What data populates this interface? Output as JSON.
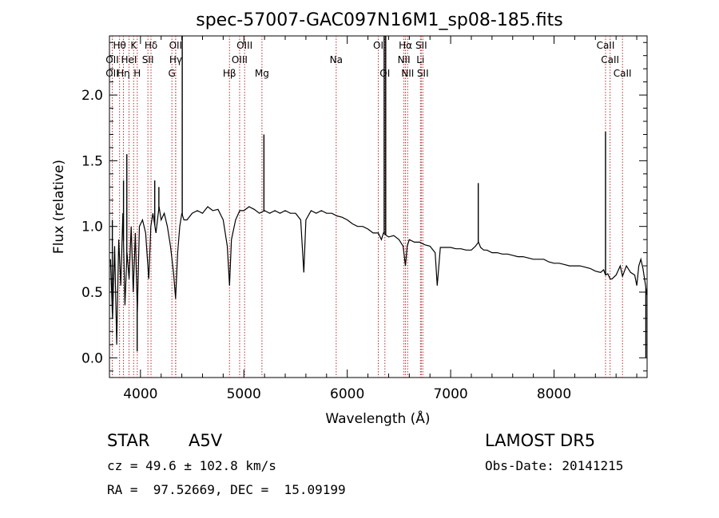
{
  "chart_data": {
    "type": "line",
    "title": "spec-57007-GAC097N16M1_sp08-185.fits",
    "xlabel": "Wavelength (Å)",
    "ylabel": "Flux (relative)",
    "xlim": [
      3700,
      8900
    ],
    "ylim": [
      -0.15,
      2.45
    ],
    "xticks": [
      4000,
      5000,
      6000,
      7000,
      8000
    ],
    "yticks": [
      0.0,
      0.5,
      1.0,
      1.5,
      2.0
    ],
    "ytick_labels": [
      "0.0",
      "0.5",
      "1.0",
      "1.5",
      "2.0"
    ],
    "line_color": "#000000",
    "marker_color": "#b03030",
    "grid": false,
    "series": [
      {
        "x": [
          3710,
          3730,
          3750,
          3770,
          3790,
          3810,
          3830,
          3850,
          3870,
          3890,
          3910,
          3930,
          3950,
          3970,
          3990,
          4020,
          4050,
          4080,
          4100,
          4120,
          4150,
          4180,
          4200,
          4230,
          4260,
          4290,
          4320,
          4340,
          4360,
          4380,
          4400,
          4420,
          4450,
          4500,
          4550,
          4600,
          4650,
          4700,
          4750,
          4800,
          4840,
          4861,
          4880,
          4920,
          4960,
          5000,
          5050,
          5100,
          5150,
          5200,
          5250,
          5300,
          5350,
          5400,
          5450,
          5500,
          5550,
          5580,
          5600,
          5650,
          5700,
          5750,
          5800,
          5850,
          5900,
          5950,
          6000,
          6050,
          6100,
          6150,
          6200,
          6250,
          6300,
          6330,
          6350,
          6380,
          6400,
          6450,
          6500,
          6540,
          6563,
          6580,
          6600,
          6650,
          6700,
          6750,
          6800,
          6850,
          6870,
          6900,
          6950,
          7000,
          7050,
          7100,
          7150,
          7200,
          7240,
          7270,
          7290,
          7320,
          7350,
          7400,
          7450,
          7500,
          7550,
          7600,
          7650,
          7700,
          7750,
          7800,
          7850,
          7900,
          7950,
          8000,
          8050,
          8100,
          8150,
          8200,
          8250,
          8300,
          8350,
          8400,
          8450,
          8480,
          8498,
          8520,
          8542,
          8560,
          8600,
          8640,
          8662,
          8700,
          8740,
          8780,
          8800,
          8820,
          8840,
          8860,
          8875,
          8885,
          8895
        ],
        "y": [
          0.75,
          0.3,
          0.85,
          0.1,
          0.9,
          0.55,
          1.1,
          0.4,
          0.8,
          0.6,
          1.0,
          0.5,
          0.95,
          0.35,
          1.0,
          1.05,
          0.95,
          0.6,
          1.0,
          1.1,
          0.95,
          1.15,
          1.05,
          1.1,
          1.0,
          0.85,
          0.65,
          0.45,
          0.8,
          1.0,
          1.1,
          1.05,
          1.05,
          1.1,
          1.12,
          1.1,
          1.15,
          1.12,
          1.13,
          1.05,
          0.85,
          0.55,
          0.9,
          1.05,
          1.12,
          1.12,
          1.15,
          1.13,
          1.1,
          1.12,
          1.1,
          1.12,
          1.1,
          1.12,
          1.1,
          1.1,
          1.05,
          0.65,
          1.05,
          1.12,
          1.1,
          1.12,
          1.1,
          1.1,
          1.08,
          1.07,
          1.05,
          1.02,
          1.0,
          1.0,
          0.98,
          0.95,
          0.95,
          0.9,
          0.95,
          0.93,
          0.92,
          0.93,
          0.9,
          0.85,
          0.7,
          0.85,
          0.9,
          0.88,
          0.88,
          0.86,
          0.85,
          0.8,
          0.55,
          0.84,
          0.84,
          0.84,
          0.83,
          0.83,
          0.82,
          0.82,
          0.85,
          0.88,
          0.84,
          0.82,
          0.82,
          0.8,
          0.8,
          0.79,
          0.79,
          0.78,
          0.77,
          0.77,
          0.76,
          0.75,
          0.75,
          0.75,
          0.73,
          0.72,
          0.72,
          0.71,
          0.7,
          0.7,
          0.7,
          0.69,
          0.68,
          0.66,
          0.65,
          0.67,
          0.63,
          0.64,
          0.6,
          0.6,
          0.63,
          0.7,
          0.62,
          0.7,
          0.65,
          0.63,
          0.55,
          0.7,
          0.75,
          0.68,
          0.6,
          0.55,
          0.48
        ]
      }
    ],
    "spikes": [
      {
        "x": 3728,
        "y": 1.05
      },
      {
        "x": 3836,
        "y": 1.35
      },
      {
        "x": 3868,
        "y": 1.55
      },
      {
        "x": 3968,
        "y": 0.05
      },
      {
        "x": 4138,
        "y": 1.35
      },
      {
        "x": 4178,
        "y": 1.3
      },
      {
        "x": 4404,
        "y": 2.45
      },
      {
        "x": 5194,
        "y": 1.7
      },
      {
        "x": 6357,
        "y": 2.45
      },
      {
        "x": 6372,
        "y": 2.45
      },
      {
        "x": 7267,
        "y": 1.33
      },
      {
        "x": 8498,
        "y": 1.72
      },
      {
        "x": 8888,
        "y": 0.0
      }
    ],
    "lines": [
      {
        "name": "Hθ",
        "x": 3798,
        "row": 1
      },
      {
        "name": "OII",
        "x": 3727,
        "row": 2
      },
      {
        "name": "OII",
        "x": 3727,
        "row": 3
      },
      {
        "name": "Hη",
        "x": 3835,
        "row": 3
      },
      {
        "name": "HeI",
        "x": 3889,
        "row": 2
      },
      {
        "name": "K",
        "x": 3934,
        "row": 1
      },
      {
        "name": "H",
        "x": 3969,
        "row": 3
      },
      {
        "name": "Hδ",
        "x": 4102,
        "row": 1
      },
      {
        "name": "SII",
        "x": 4072,
        "row": 2
      },
      {
        "name": "OII",
        "x": 4340,
        "row": 1
      },
      {
        "name": "Hγ",
        "x": 4341,
        "row": 2
      },
      {
        "name": "G",
        "x": 4304,
        "row": 3
      },
      {
        "name": "OIII",
        "x": 5007,
        "row": 1
      },
      {
        "name": "OIII",
        "x": 4959,
        "row": 2
      },
      {
        "name": "Hβ",
        "x": 4861,
        "row": 3
      },
      {
        "name": "Mg",
        "x": 5175,
        "row": 3
      },
      {
        "name": "Na",
        "x": 5893,
        "row": 2
      },
      {
        "name": "OI",
        "x": 6300,
        "row": 1
      },
      {
        "name": "OI",
        "x": 6364,
        "row": 3
      },
      {
        "name": "Hα",
        "x": 6563,
        "row": 1
      },
      {
        "name": "NII",
        "x": 6548,
        "row": 2
      },
      {
        "name": "NII",
        "x": 6584,
        "row": 3
      },
      {
        "name": "SII",
        "x": 6716,
        "row": 1
      },
      {
        "name": "Li",
        "x": 6708,
        "row": 2
      },
      {
        "name": "SII",
        "x": 6731,
        "row": 3
      },
      {
        "name": "CaII",
        "x": 8498,
        "row": 1
      },
      {
        "name": "CaII",
        "x": 8542,
        "row": 2
      },
      {
        "name": "CaII",
        "x": 8662,
        "row": 3
      }
    ]
  },
  "info": {
    "object_class": "STAR",
    "subclass": "A5V",
    "survey": "LAMOST DR5",
    "cz": "cz = 49.6 ± 102.8 km/s",
    "obs_date": "Obs-Date: 20141215",
    "radec": "RA =  97.52669, DEC =  15.09199"
  }
}
